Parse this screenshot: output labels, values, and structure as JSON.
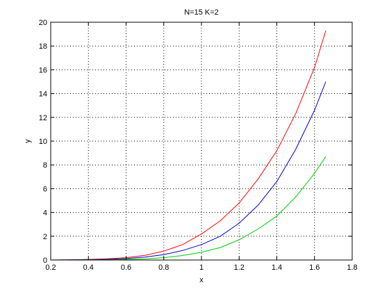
{
  "chart_data": {
    "type": "line",
    "title": "N=15   K=2",
    "xlabel": "x",
    "ylabel": "y",
    "xlim": [
      0.2,
      1.8
    ],
    "ylim": [
      0,
      20
    ],
    "xticks": [
      0.2,
      0.4,
      0.6,
      0.8,
      1,
      1.2,
      1.4,
      1.6,
      1.8
    ],
    "yticks": [
      0,
      2,
      4,
      6,
      8,
      10,
      12,
      14,
      16,
      18,
      20
    ],
    "xtick_labels": [
      "0.2",
      "0.4",
      "0.6",
      "0.8",
      "1",
      "1.2",
      "1.4",
      "1.6",
      "1.8"
    ],
    "ytick_labels": [
      "0",
      "2",
      "4",
      "6",
      "8",
      "10",
      "12",
      "14",
      "16",
      "18",
      "20"
    ],
    "grid": true,
    "x": [
      0.2,
      0.3,
      0.4,
      0.5,
      0.6,
      0.7,
      0.8,
      0.9,
      1.0,
      1.1,
      1.2,
      1.3,
      1.4,
      1.5,
      1.6,
      1.66
    ],
    "series": [
      {
        "color": "#ff0000",
        "values": [
          0.0,
          0.02,
          0.05,
          0.1,
          0.2,
          0.4,
          0.75,
          1.3,
          2.2,
          3.3,
          4.8,
          6.8,
          9.2,
          12.3,
          16.2,
          19.3
        ]
      },
      {
        "color": "#0000cc",
        "values": [
          0.0,
          0.01,
          0.03,
          0.06,
          0.12,
          0.25,
          0.45,
          0.8,
          1.3,
          2.0,
          3.1,
          4.6,
          6.6,
          9.3,
          12.6,
          15.0
        ]
      },
      {
        "color": "#00cc00",
        "values": [
          0.0,
          0.0,
          0.01,
          0.02,
          0.05,
          0.1,
          0.2,
          0.38,
          0.65,
          1.05,
          1.7,
          2.6,
          3.7,
          5.3,
          7.3,
          8.7
        ]
      }
    ]
  }
}
